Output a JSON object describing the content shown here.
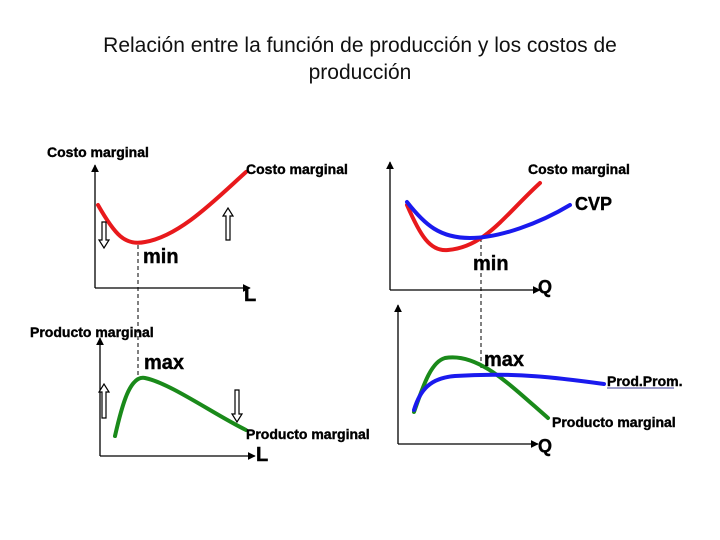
{
  "title": {
    "line1": "Relación entre la función de producción y los costos de",
    "line2": "producción"
  },
  "labels": {
    "costo_marginal": "Costo marginal",
    "producto_marginal": "Producto marginal",
    "min": "min",
    "max": "max",
    "L": "L",
    "Q": "Q",
    "cvp": "CVP",
    "prod_prom": "Prod.Prom."
  },
  "colors": {
    "costo_marginal_curve": "#e8191c",
    "producto_marginal_curve": "#1a8a1a",
    "average_curve": "#1a1aee",
    "axis": "#000000"
  }
}
